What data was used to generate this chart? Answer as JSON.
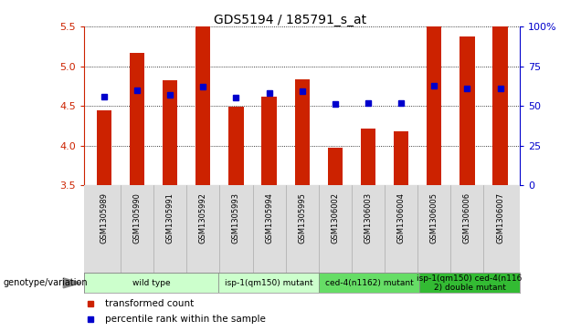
{
  "title": "GDS5194 / 185791_s_at",
  "samples": [
    "GSM1305989",
    "GSM1305990",
    "GSM1305991",
    "GSM1305992",
    "GSM1305993",
    "GSM1305994",
    "GSM1305995",
    "GSM1306002",
    "GSM1306003",
    "GSM1306004",
    "GSM1306005",
    "GSM1306006",
    "GSM1306007"
  ],
  "transformed_counts": [
    4.44,
    5.17,
    4.82,
    5.5,
    4.49,
    4.62,
    4.83,
    3.97,
    4.22,
    4.18,
    5.5,
    5.37,
    5.5
  ],
  "percentile_ranks": [
    56,
    60,
    57,
    62,
    55,
    58,
    59,
    51,
    52,
    52,
    63,
    61,
    61
  ],
  "ylim": [
    3.5,
    5.5
  ],
  "yticks": [
    3.5,
    4.0,
    4.5,
    5.0,
    5.5
  ],
  "right_yticks": [
    0,
    25,
    50,
    75,
    100
  ],
  "right_ylim": [
    0,
    100
  ],
  "bar_color": "#CC2200",
  "dot_color": "#0000CC",
  "title_fontsize": 10,
  "groups": [
    {
      "label": "wild type",
      "indices": [
        0,
        1,
        2,
        3
      ],
      "color": "#CCFFCC"
    },
    {
      "label": "isp-1(qm150) mutant",
      "indices": [
        4,
        5,
        6
      ],
      "color": "#CCFFCC"
    },
    {
      "label": "ced-4(n1162) mutant",
      "indices": [
        7,
        8,
        9
      ],
      "color": "#66DD66"
    },
    {
      "label": "isp-1(qm150) ced-4(n116\n2) double mutant",
      "indices": [
        10,
        11,
        12
      ],
      "color": "#33BB33"
    }
  ],
  "bar_width": 0.45,
  "legend_label_count": "transformed count",
  "legend_label_pct": "percentile rank within the sample",
  "genotype_label": "genotype/variation"
}
